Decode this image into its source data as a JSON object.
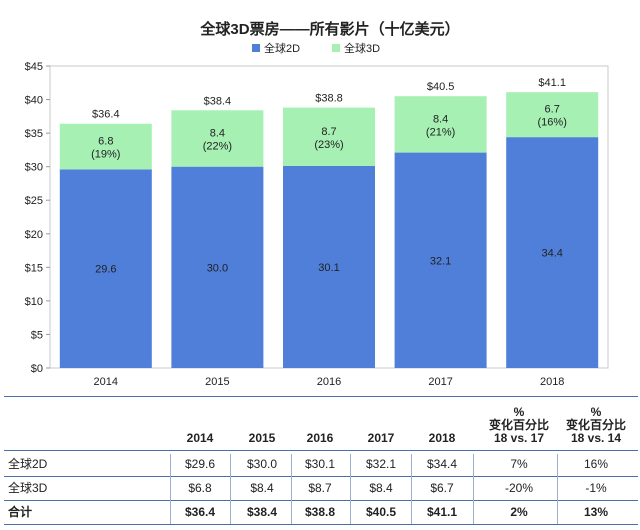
{
  "chart_data": {
    "type": "bar",
    "stacked": true,
    "title": "全球3D票房——所有影片（十亿美元）",
    "categories": [
      "2014",
      "2015",
      "2016",
      "2017",
      "2018"
    ],
    "series": [
      {
        "name": "全球2D",
        "values": [
          29.6,
          30.0,
          30.1,
          32.1,
          34.4
        ],
        "color": "#4f7fd9",
        "labels": [
          "29.6",
          "30.0",
          "30.1",
          "32.1",
          "34.4"
        ]
      },
      {
        "name": "全球3D",
        "values": [
          6.8,
          8.4,
          8.7,
          8.4,
          6.7
        ],
        "color": "#a6f0b4",
        "labels": [
          "6.8",
          "8.4",
          "8.7",
          "8.4",
          "6.7"
        ],
        "share_labels": [
          "(19%)",
          "(22%)",
          "(23%)",
          "(21%)",
          "(16%)"
        ]
      }
    ],
    "totals": [
      "$36.4",
      "$38.4",
      "$38.8",
      "$40.5",
      "$41.1"
    ],
    "ylim": [
      0,
      45
    ],
    "yticks": [
      0,
      5,
      10,
      15,
      20,
      25,
      30,
      35,
      40,
      45
    ],
    "ytick_labels": [
      "$0",
      "$5",
      "$10",
      "$15",
      "$20",
      "$25",
      "$30",
      "$35",
      "$40",
      "$45"
    ],
    "grid": false,
    "legend_position": "top-center"
  },
  "table": {
    "headers": [
      "2014",
      "2015",
      "2016",
      "2017",
      "2018"
    ],
    "pct_headers": [
      {
        "symbol": "%",
        "line1": "变化百分比",
        "line2": "18 vs. 17"
      },
      {
        "symbol": "%",
        "line1": "变化百分比",
        "line2": "18 vs. 14"
      }
    ],
    "rows": [
      {
        "label": "全球2D",
        "values": [
          "$29.6",
          "$30.0",
          "$30.1",
          "$32.1",
          "$34.4",
          "7%",
          "16%"
        ],
        "bold": false
      },
      {
        "label": "全球3D",
        "values": [
          "$6.8",
          "$8.4",
          "$8.7",
          "$8.4",
          "$6.7",
          "-20%",
          "-1%"
        ],
        "bold": false
      },
      {
        "label": "合计",
        "values": [
          "$36.4",
          "$38.4",
          "$38.8",
          "$40.5",
          "$41.1",
          "2%",
          "13%"
        ],
        "bold": true
      }
    ]
  }
}
